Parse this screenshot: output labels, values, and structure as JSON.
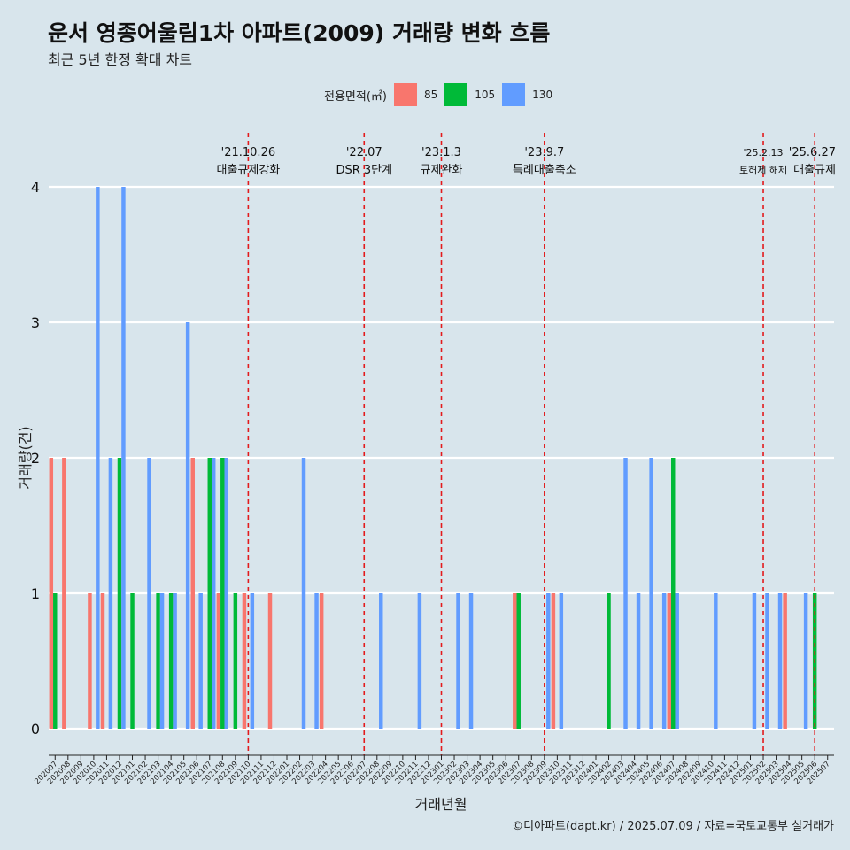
{
  "title": "운서 영종어울림1차 아파트(2009) 거래량 변화 흐름",
  "subtitle": "최근 5년 한정 확대 차트",
  "caption": "©디아파트(dapt.kr) / 2025.07.09 / 자료=국토교통부 실거래가",
  "chart_data": {
    "type": "bar",
    "xlabel": "거래년월",
    "ylabel": "거래량(건)",
    "ylim": [
      0,
      4
    ],
    "yticks": [
      0,
      1,
      2,
      3,
      4
    ],
    "grid": true,
    "legend_title": "전용면적(㎡)",
    "legend_position": "top",
    "categories": [
      "202007",
      "202008",
      "202009",
      "202010",
      "202011",
      "202012",
      "202101",
      "202102",
      "202103",
      "202104",
      "202105",
      "202106",
      "202107",
      "202108",
      "202109",
      "202110",
      "202111",
      "202112",
      "202201",
      "202202",
      "202203",
      "202204",
      "202205",
      "202206",
      "202207",
      "202208",
      "202209",
      "202210",
      "202211",
      "202212",
      "202301",
      "202302",
      "202303",
      "202304",
      "202305",
      "202306",
      "202307",
      "202308",
      "202309",
      "202310",
      "202311",
      "202312",
      "202401",
      "202402",
      "202403",
      "202404",
      "202405",
      "202406",
      "202407",
      "202408",
      "202409",
      "202410",
      "202411",
      "202412",
      "202501",
      "202502",
      "202503",
      "202504",
      "202505",
      "202506",
      "202507"
    ],
    "series": [
      {
        "name": "85",
        "color": "#F8766D",
        "values": [
          2,
          2,
          0,
          1,
          1,
          0,
          0,
          0,
          0,
          0,
          0,
          2,
          0,
          1,
          0,
          1,
          0,
          1,
          0,
          0,
          0,
          1,
          0,
          0,
          0,
          0,
          0,
          0,
          0,
          0,
          0,
          0,
          0,
          0,
          0,
          0,
          1,
          0,
          0,
          1,
          0,
          0,
          0,
          0,
          0,
          0,
          0,
          0,
          1,
          0,
          0,
          0,
          0,
          0,
          0,
          0,
          0,
          1,
          0,
          0,
          0
        ]
      },
      {
        "name": "105",
        "color": "#00BA38",
        "values": [
          1,
          0,
          0,
          0,
          0,
          2,
          1,
          0,
          1,
          1,
          0,
          0,
          2,
          2,
          1,
          0,
          0,
          0,
          0,
          0,
          0,
          0,
          0,
          0,
          0,
          0,
          0,
          0,
          0,
          0,
          0,
          0,
          0,
          0,
          0,
          0,
          1,
          0,
          0,
          0,
          0,
          0,
          0,
          1,
          0,
          0,
          0,
          0,
          2,
          0,
          0,
          0,
          0,
          0,
          0,
          0,
          0,
          0,
          0,
          1,
          0
        ]
      },
      {
        "name": "130",
        "color": "#619CFF",
        "values": [
          0,
          0,
          0,
          4,
          2,
          4,
          0,
          2,
          1,
          1,
          3,
          1,
          2,
          2,
          0,
          1,
          0,
          0,
          0,
          2,
          1,
          0,
          0,
          0,
          0,
          1,
          0,
          0,
          1,
          0,
          0,
          1,
          1,
          0,
          0,
          0,
          0,
          0,
          1,
          1,
          0,
          0,
          0,
          0,
          2,
          1,
          2,
          1,
          1,
          0,
          0,
          1,
          0,
          0,
          1,
          1,
          1,
          0,
          1,
          0,
          0
        ]
      }
    ],
    "events": [
      {
        "date": "'21.10.26",
        "label": "대출규제강화",
        "at": "202110"
      },
      {
        "date": "'22.07",
        "label": "DSR 3단계",
        "at": "202207"
      },
      {
        "date": "'23.1.3",
        "label": "규제완화",
        "at": "202301"
      },
      {
        "date": "'23.9.7",
        "label": "특례대출축소",
        "at": "202309"
      },
      {
        "date": "'25.2.13",
        "label": "토허제 해제",
        "at": "202502"
      },
      {
        "date": "'25.6.27",
        "label": "대출규제",
        "at": "202506"
      }
    ]
  }
}
